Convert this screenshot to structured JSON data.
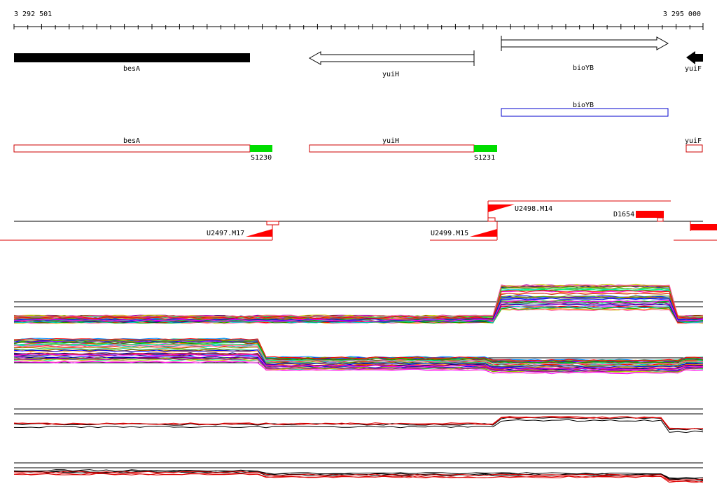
{
  "coordinates": {
    "start_label": "3 292 501",
    "end_label": "3 295 000"
  },
  "genes": [
    {
      "name": "besA",
      "strand": "+",
      "style": "filled",
      "color": "#000000"
    },
    {
      "name": "yuiH",
      "strand": "-",
      "style": "outline",
      "color": "#000000"
    },
    {
      "name": "bioYB",
      "strand": "+",
      "style": "outline",
      "color": "#000000"
    },
    {
      "name": "yuiF",
      "strand": "-",
      "style": "filled",
      "color": "#000000"
    }
  ],
  "annotations": [
    {
      "name": "bioYB",
      "color": "#0000cc"
    }
  ],
  "transcripts": [
    {
      "name": "besA",
      "color": "#cc0000"
    },
    {
      "name": "yuiH",
      "color": "#cc0000"
    },
    {
      "name": "yuiF",
      "color": "#cc0000"
    }
  ],
  "signals": [
    {
      "name": "S1230",
      "color": "#00dd00"
    },
    {
      "name": "S1231",
      "color": "#00dd00"
    }
  ],
  "upstream_features": [
    {
      "name": "U2498.M14",
      "strand": "+"
    },
    {
      "name": "U2497.M17",
      "strand": "-"
    },
    {
      "name": "U2499.M15",
      "strand": "-"
    }
  ],
  "downstream_features": [
    {
      "name": "D1654",
      "color": "#ff0000"
    }
  ],
  "colors": {
    "feature_red": "#ff0000",
    "line_red": "#dd0000",
    "signal_green": "#00dd00",
    "annotation_blue": "#0000cc"
  }
}
